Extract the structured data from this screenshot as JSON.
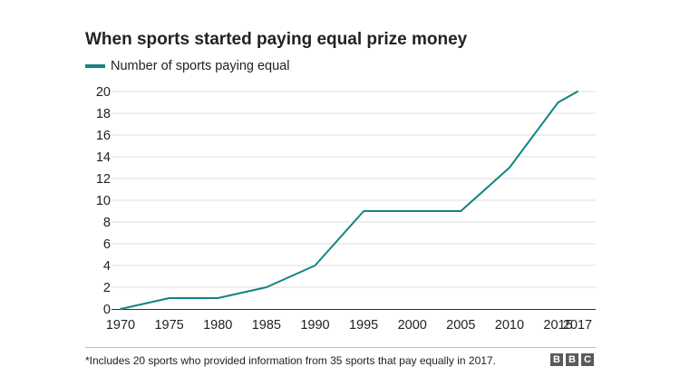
{
  "chart_data": {
    "type": "line",
    "title": "When sports started paying equal prize money",
    "xlabel": "",
    "ylabel": "",
    "x": [
      1970,
      1975,
      1980,
      1985,
      1990,
      1995,
      2000,
      2005,
      2010,
      2015,
      2017
    ],
    "x_tick_labels": [
      "1970",
      "1975",
      "1980",
      "1985",
      "1990",
      "1995",
      "2000",
      "2005",
      "2010",
      "2015",
      "2017"
    ],
    "y_ticks": [
      0,
      2,
      4,
      6,
      8,
      10,
      12,
      14,
      16,
      18,
      20
    ],
    "ylim": [
      0,
      20
    ],
    "grid": true,
    "legend_position": "top-left",
    "series": [
      {
        "name": "Number of sports paying equal",
        "color": "#128482",
        "values": [
          0,
          1,
          1,
          2,
          4,
          9,
          9,
          9,
          13,
          19,
          20
        ]
      }
    ]
  },
  "footnote": "*Includes 20 sports who provided information from 35 sports that pay equally in 2017.",
  "logo": {
    "letters": [
      "B",
      "B",
      "C"
    ]
  },
  "colors": {
    "line": "#128482",
    "grid": "#dddddd",
    "axis": "#333333",
    "logo_box": "#5a5a5a"
  }
}
